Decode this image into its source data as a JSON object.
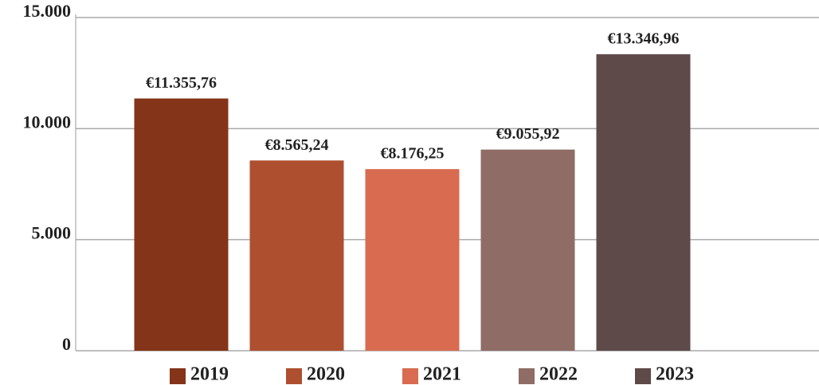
{
  "chart_data": {
    "type": "bar",
    "categories": [
      "2019",
      "2020",
      "2021",
      "2022",
      "2023"
    ],
    "values": [
      11355.76,
      8565.24,
      8176.25,
      9055.92,
      13346.96
    ],
    "value_labels": [
      "€11.355,76",
      "€8.565,24",
      "€8.176,25",
      "€9.055,92",
      "€13.346,96"
    ],
    "colors": [
      "#843418",
      "#ae4f30",
      "#d96b50",
      "#8f6c66",
      "#5e4a49"
    ],
    "ylim": [
      0,
      15000
    ],
    "yticks": [
      0,
      {
        "value": 5000,
        "label": "5.000"
      },
      {
        "value": 10000,
        "label": "10.000"
      },
      {
        "value": 15000,
        "label": "15.000"
      }
    ],
    "grid": true,
    "legend": "bottom"
  }
}
